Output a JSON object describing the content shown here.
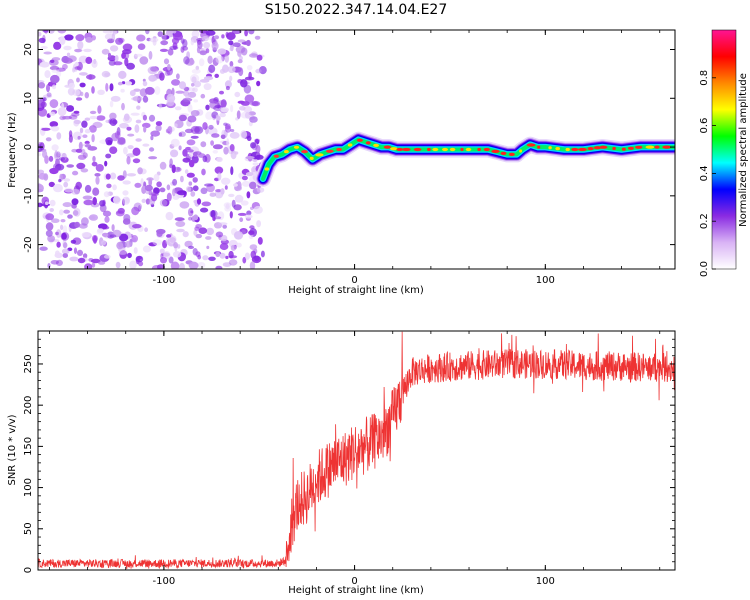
{
  "title": "S150.2022.347.14.04.E27",
  "chart_data": [
    {
      "type": "heatmap",
      "xlabel": "Height of straight line (km)",
      "ylabel": "Frequency (Hz)",
      "xlim": [
        -166,
        168
      ],
      "ylim": [
        -25,
        24
      ],
      "xticks": [
        -100,
        0,
        100
      ],
      "yticks": [
        -20,
        -10,
        0,
        10,
        20
      ],
      "noise_region_x": [
        -166,
        -48
      ],
      "signal_trace": {
        "x": [
          -48,
          -45,
          -42,
          -38,
          -34,
          -30,
          -26,
          -22,
          -18,
          -14,
          -10,
          -6,
          -2,
          2,
          6,
          10,
          14,
          18,
          22,
          26,
          30,
          40,
          50,
          60,
          70,
          75,
          80,
          85,
          88,
          92,
          96,
          100,
          110,
          120,
          130,
          140,
          150,
          160,
          168
        ],
        "y": [
          -6.5,
          -3.5,
          -2.0,
          -1.5,
          -0.5,
          0.0,
          -1.0,
          -2.5,
          -1.5,
          -1.0,
          -0.5,
          -0.5,
          0.5,
          1.5,
          1.0,
          0.5,
          0.0,
          0.0,
          -0.5,
          -0.5,
          -0.5,
          -0.5,
          -0.5,
          -0.5,
          -0.5,
          -1.0,
          -1.5,
          -1.5,
          -0.5,
          0.5,
          0.0,
          0.0,
          -0.5,
          -0.5,
          0.0,
          -0.5,
          0.0,
          0.0,
          0.0
        ]
      }
    },
    {
      "type": "colorbar",
      "label": "Normalized spectral amplitude",
      "range": [
        0.0,
        1.0
      ],
      "ticks": [
        "0.0",
        "0.2",
        "0.4",
        "0.6",
        "0.8"
      ],
      "tick_values": [
        0.0,
        0.2,
        0.4,
        0.6,
        0.8
      ],
      "colors": [
        "#ffffff",
        "#d9b3f5",
        "#8a2be2",
        "#0000ff",
        "#00ffff",
        "#00ff00",
        "#ffff00",
        "#ff8800",
        "#ff0000",
        "#ff1493"
      ]
    },
    {
      "type": "line",
      "xlabel": "Height of straight line (km)",
      "ylabel": "SNR (10 * v/v)",
      "xlim": [
        -166,
        168
      ],
      "ylim": [
        0,
        290
      ],
      "xticks": [
        -100,
        0,
        100
      ],
      "yticks": [
        0,
        50,
        100,
        150,
        200,
        250
      ],
      "color": "#ee3333",
      "envelope": {
        "x": [
          -166,
          -60,
          -40,
          -36,
          -34,
          -30,
          -25,
          -20,
          -15,
          -10,
          -5,
          0,
          5,
          10,
          15,
          20,
          25,
          30,
          40,
          60,
          80,
          100,
          120,
          140,
          168
        ],
        "y": [
          8,
          8,
          8,
          12,
          50,
          80,
          90,
          110,
          120,
          130,
          135,
          145,
          150,
          155,
          165,
          185,
          215,
          240,
          245,
          248,
          250,
          250,
          248,
          247,
          245
        ]
      },
      "noise_amplitude": [
        {
          "from": -166,
          "to": -36,
          "amp": 5
        },
        {
          "from": -36,
          "to": 25,
          "amp": 35
        },
        {
          "from": 25,
          "to": 168,
          "amp": 18
        }
      ]
    }
  ]
}
